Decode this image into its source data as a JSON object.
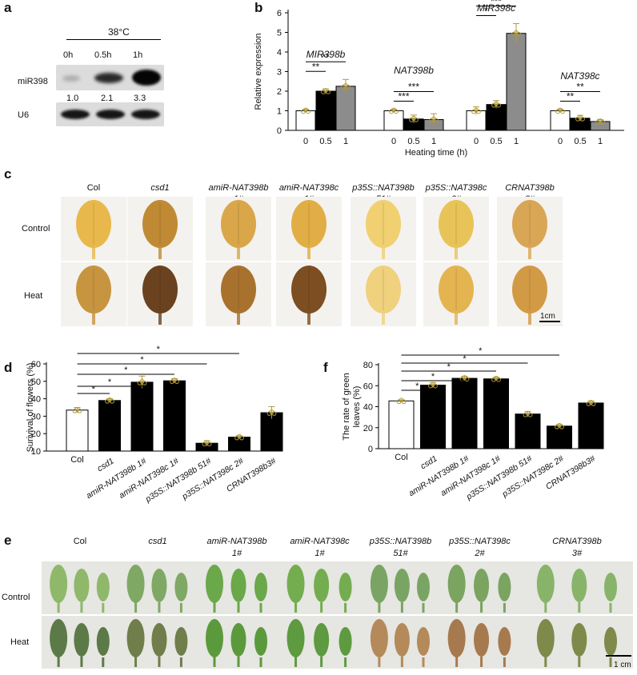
{
  "panel_labels": {
    "a": "a",
    "b": "b",
    "c": "c",
    "d": "d",
    "e": "e",
    "f": "f"
  },
  "panel_a": {
    "temperature": "38°C",
    "timepoints": [
      "0h",
      "0.5h",
      "1h"
    ],
    "rows": [
      "miR398",
      "U6"
    ],
    "quantification": [
      "1.0",
      "2.1",
      "3.3"
    ]
  },
  "genotypes_c": [
    {
      "line1": "Col",
      "line2": ""
    },
    {
      "line1": "csd1",
      "line2": ""
    },
    {
      "line1": "amiR-NAT398b",
      "line2": "1#"
    },
    {
      "line1": "amiR-NAT398c",
      "line2": "1#"
    },
    {
      "line1": "p35S::NAT398b",
      "line2": "51#"
    },
    {
      "line1": "p35S::NAT398c",
      "line2": "2#"
    },
    {
      "line1": "CRNAT398b",
      "line2": "3#"
    }
  ],
  "conditions": [
    "Control",
    "Heat"
  ],
  "scale_bars": {
    "c": "1cm",
    "e": "1 cm"
  },
  "chart_data": [
    {
      "id": "b",
      "type": "bar",
      "ylabel": "Relative expression",
      "xlabel": "Heating time (h)",
      "ylim": [
        0,
        6
      ],
      "yticks": [
        0,
        1,
        2,
        3,
        4,
        5,
        6
      ],
      "groups": [
        {
          "name": "MIR398b",
          "categories": [
            "0",
            "0.5",
            "1"
          ],
          "values": [
            1.0,
            2.0,
            2.25
          ],
          "errors": [
            0.08,
            0.12,
            0.35
          ],
          "sig": [
            "**",
            "**"
          ]
        },
        {
          "name": "NAT398b",
          "categories": [
            "0",
            "0.5",
            "1"
          ],
          "values": [
            1.0,
            0.58,
            0.55
          ],
          "errors": [
            0.08,
            0.2,
            0.3
          ],
          "sig": [
            "***",
            "***"
          ]
        },
        {
          "name": "MIR398c",
          "categories": [
            "0",
            "0.5",
            "1"
          ],
          "values": [
            1.0,
            1.32,
            4.95
          ],
          "errors": [
            0.2,
            0.2,
            0.5
          ],
          "sig": [
            "*",
            "***"
          ]
        },
        {
          "name": "NAT398c",
          "categories": [
            "0",
            "0.5",
            "1"
          ],
          "values": [
            1.0,
            0.62,
            0.45
          ],
          "errors": [
            0.08,
            0.15,
            0.1
          ],
          "sig": [
            "**",
            "**"
          ]
        }
      ],
      "bar_colors": [
        "#ffffff",
        "#000000",
        "#8c8c8c"
      ]
    },
    {
      "id": "d",
      "type": "bar",
      "ylabel": "Surivival of flowers (%)",
      "ylim": [
        10,
        60
      ],
      "yticks": [
        10,
        20,
        30,
        40,
        50,
        60
      ],
      "categories": [
        "Col",
        "csd1",
        "amiR-NAT398b 1#",
        "amiR-NAT398c 1#",
        "p35S::NAT398b 51#",
        "p35S::NAT398c 2#",
        "CRNAT398b3#"
      ],
      "values": [
        33.5,
        39,
        49.5,
        50.3,
        14.5,
        18,
        32
      ],
      "errors": [
        1.5,
        1.0,
        3.5,
        1.2,
        1.5,
        0.8,
        3.5
      ],
      "sig": [
        "*",
        "*",
        "*",
        "*",
        "*"
      ]
    },
    {
      "id": "f",
      "type": "bar",
      "ylabel": "The rate of green leaves (%)",
      "ylim": [
        0,
        80
      ],
      "yticks": [
        0,
        20,
        40,
        60,
        80
      ],
      "categories": [
        "Col",
        "csd1",
        "amiR-NAT398b 1#",
        "amiR-NAT398c 1#",
        "p35S::NAT398b 51#",
        "p35S::NAT398c 2#",
        "CRNAT398b3#"
      ],
      "values": [
        45.5,
        60.5,
        67,
        66.5,
        33,
        21.5,
        43.5
      ],
      "errors": [
        1.0,
        2.5,
        2.0,
        1.5,
        2.5,
        1.5,
        2.0
      ],
      "sig": [
        "*",
        "*",
        "*",
        "*",
        "*"
      ]
    }
  ]
}
